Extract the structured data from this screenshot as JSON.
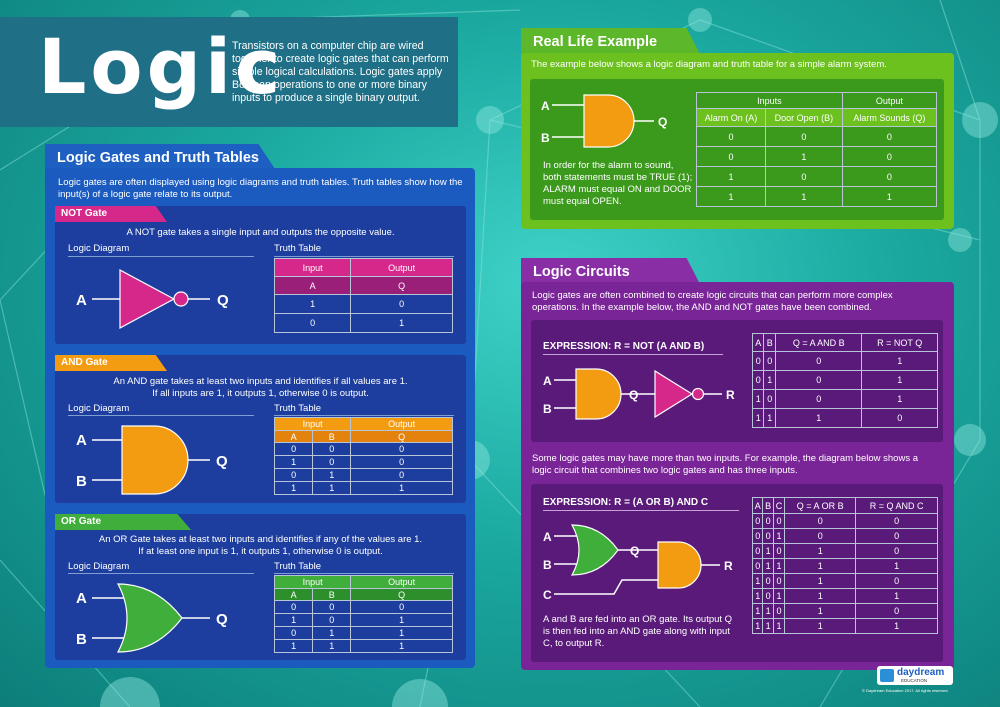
{
  "header": {
    "title": "Logic",
    "intro": "Transistors on a computer chip are wired together to create logic gates that can perform simple logical calculations. Logic gates apply Boolean operations to one or more binary inputs to produce a single binary output."
  },
  "gates_section": {
    "tab": "Logic Gates and Truth Tables",
    "intro": "Logic gates are often displayed using logic diagrams and truth tables. Truth tables show how the input(s) of a logic gate relate to its output.",
    "diagram_label": "Logic Diagram",
    "truth_label": "Truth Table",
    "not": {
      "name": "NOT Gate",
      "desc": "A NOT gate takes a single input and outputs the opposite value.",
      "in_a": "A",
      "out_q": "Q",
      "head_input": "Input",
      "head_output": "Output",
      "col_a": "A",
      "col_q": "Q",
      "rows": [
        [
          "1",
          "0"
        ],
        [
          "0",
          "1"
        ]
      ]
    },
    "and": {
      "name": "AND Gate",
      "desc1": "An AND gate takes at least two inputs and identifies if all values are 1.",
      "desc2": "If all inputs are 1, it outputs 1, otherwise 0 is output.",
      "in_a": "A",
      "in_b": "B",
      "out_q": "Q",
      "head_input": "Input",
      "head_output": "Output",
      "col_a": "A",
      "col_b": "B",
      "col_q": "Q",
      "rows": [
        [
          "0",
          "0",
          "0"
        ],
        [
          "1",
          "0",
          "0"
        ],
        [
          "0",
          "1",
          "0"
        ],
        [
          "1",
          "1",
          "1"
        ]
      ]
    },
    "or": {
      "name": "OR Gate",
      "desc1": "An OR Gate takes at least two inputs and identifies if any of the values are 1.",
      "desc2": "If at least one input is 1, it outputs 1, otherwise 0 is output.",
      "in_a": "A",
      "in_b": "B",
      "out_q": "Q",
      "head_input": "Input",
      "head_output": "Output",
      "col_a": "A",
      "col_b": "B",
      "col_q": "Q",
      "rows": [
        [
          "0",
          "0",
          "0"
        ],
        [
          "1",
          "0",
          "1"
        ],
        [
          "0",
          "1",
          "1"
        ],
        [
          "1",
          "1",
          "1"
        ]
      ]
    }
  },
  "real_life": {
    "tab": "Real Life Example",
    "intro": "The example below shows a logic diagram and truth table for a simple alarm system.",
    "in_a": "A",
    "in_b": "B",
    "out_q": "Q",
    "note": "In order for the alarm to sound, both statements must be TRUE (1); ALARM must equal ON and DOOR must equal OPEN.",
    "head_inputs": "Inputs",
    "head_output": "Output",
    "col1": "Alarm On (A)",
    "col2": "Door Open (B)",
    "col3": "Alarm Sounds (Q)",
    "rows": [
      [
        "0",
        "0",
        "0"
      ],
      [
        "0",
        "1",
        "0"
      ],
      [
        "1",
        "0",
        "0"
      ],
      [
        "1",
        "1",
        "1"
      ]
    ]
  },
  "circuits": {
    "tab": "Logic Circuits",
    "intro": "Logic gates are often combined to create logic circuits that can perform more complex operations. In the example below, the AND and NOT gates have been combined.",
    "ex1": {
      "expression": "EXPRESSION: R = NOT (A AND B)",
      "in_a": "A",
      "in_b": "B",
      "mid_q": "Q",
      "out_r": "R",
      "cols": [
        "A",
        "B",
        "Q = A AND B",
        "R = NOT Q"
      ],
      "rows": [
        [
          "0",
          "0",
          "0",
          "1"
        ],
        [
          "0",
          "1",
          "0",
          "1"
        ],
        [
          "1",
          "0",
          "0",
          "1"
        ],
        [
          "1",
          "1",
          "1",
          "0"
        ]
      ]
    },
    "middle": "Some logic gates may have more than two inputs. For example, the diagram below shows a logic circuit that combines two logic gates and has three inputs.",
    "ex2": {
      "expression": "EXPRESSION: R = (A OR B) AND C",
      "in_a": "A",
      "in_b": "B",
      "in_c": "C",
      "mid_q": "Q",
      "out_r": "R",
      "note": "A and B are fed into an OR gate. Its output Q is then fed into an AND gate along with input C, to output R.",
      "cols": [
        "A",
        "B",
        "C",
        "Q = A OR B",
        "R = Q AND C"
      ],
      "rows": [
        [
          "0",
          "0",
          "0",
          "0",
          "0"
        ],
        [
          "0",
          "0",
          "1",
          "0",
          "0"
        ],
        [
          "0",
          "1",
          "0",
          "1",
          "0"
        ],
        [
          "0",
          "1",
          "1",
          "1",
          "1"
        ],
        [
          "1",
          "0",
          "0",
          "1",
          "0"
        ],
        [
          "1",
          "0",
          "1",
          "1",
          "1"
        ],
        [
          "1",
          "1",
          "0",
          "1",
          "0"
        ],
        [
          "1",
          "1",
          "1",
          "1",
          "1"
        ]
      ]
    }
  },
  "brand": {
    "logo": "daydream",
    "sub": "EDUCATION",
    "copyright": "© Daydream Education 2017. All rights reserved."
  }
}
